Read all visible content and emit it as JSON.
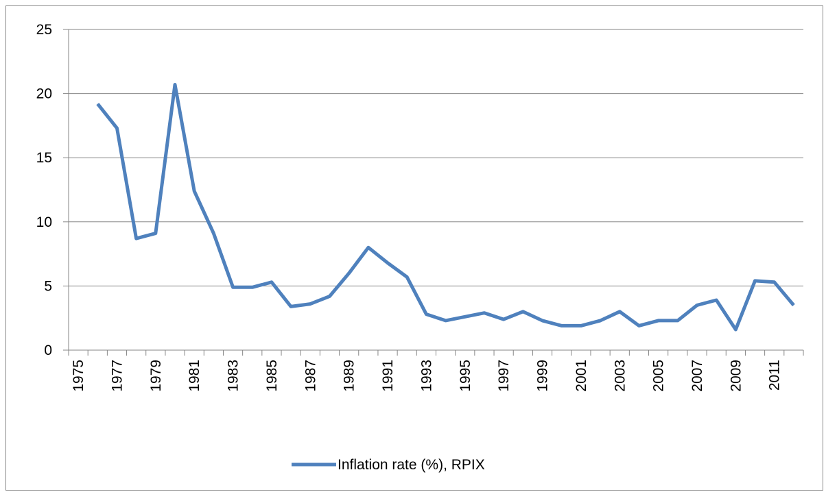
{
  "chart_data": {
    "type": "line",
    "categories": [
      "1975",
      null,
      "1977",
      null,
      "1979",
      null,
      "1981",
      null,
      "1983",
      null,
      "1985",
      null,
      "1987",
      null,
      "1989",
      null,
      "1991",
      null,
      "1993",
      null,
      "1995",
      null,
      "1997",
      null,
      "1999",
      null,
      "2001",
      null,
      "2003",
      null,
      "2005",
      null,
      "2007",
      null,
      "2009",
      null,
      "2011",
      null
    ],
    "series": [
      {
        "name": "Inflation rate (%), RPIX",
        "color": "#4f81bd",
        "values": [
          null,
          19.2,
          17.3,
          8.7,
          9.1,
          20.7,
          12.4,
          9.1,
          4.9,
          4.9,
          5.3,
          3.4,
          3.6,
          4.2,
          6.0,
          8.0,
          6.8,
          5.7,
          2.8,
          2.3,
          2.6,
          2.9,
          2.4,
          3.0,
          2.3,
          1.9,
          1.9,
          2.3,
          3.0,
          1.9,
          2.3,
          2.3,
          3.5,
          3.9,
          1.6,
          5.4,
          5.3,
          3.5
        ]
      }
    ],
    "ylim": [
      0,
      25
    ],
    "yticks": [
      0,
      5,
      10,
      15,
      20,
      25
    ],
    "grid": true,
    "legend": "bottom"
  }
}
